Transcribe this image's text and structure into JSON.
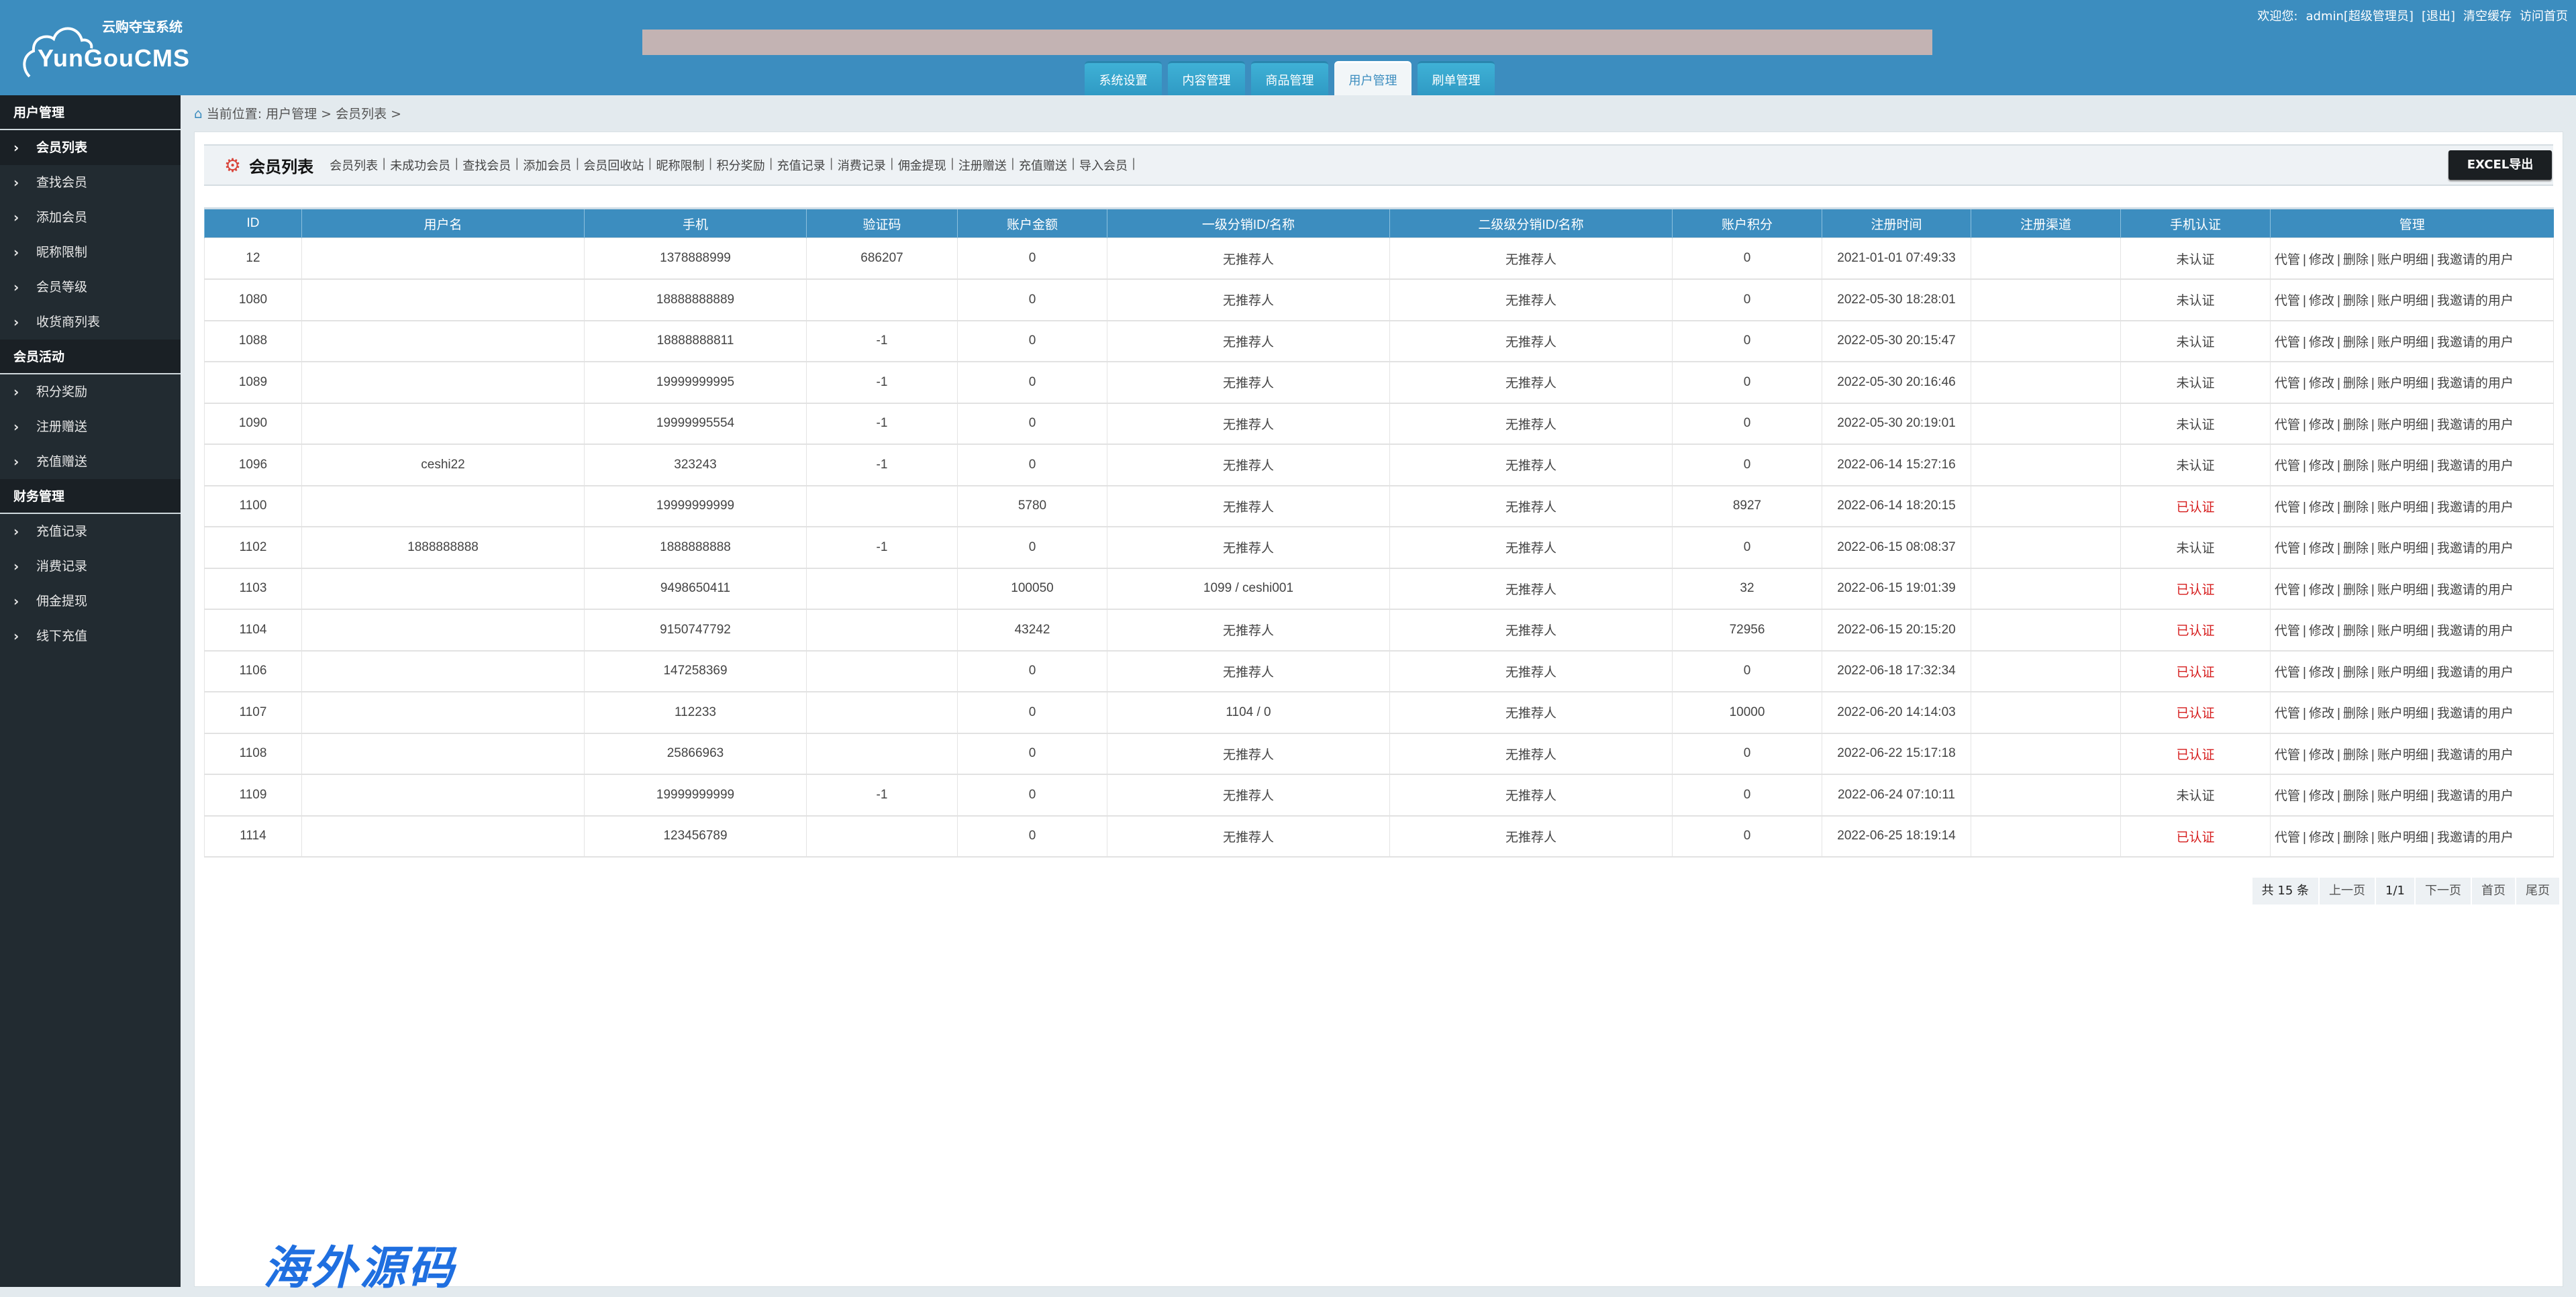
{
  "logo": {
    "cn": "云购夺宝系统",
    "en": "YunGouCMS"
  },
  "topnav": {
    "welcome": "欢迎您:",
    "user": "admin[超级管理员]",
    "logout": "[退出]",
    "clear_cache": "清空缓存",
    "visit_home": "访问首页"
  },
  "tabs": [
    {
      "label": "系统设置"
    },
    {
      "label": "内容管理"
    },
    {
      "label": "商品管理"
    },
    {
      "label": "用户管理",
      "active": true
    },
    {
      "label": "刷单管理"
    }
  ],
  "sidebar": {
    "sections": [
      {
        "title": "用户管理",
        "items": [
          "会员列表",
          "查找会员",
          "添加会员",
          "昵称限制",
          "会员等级",
          "收货商列表"
        ]
      },
      {
        "title": "会员活动",
        "items": [
          "积分奖励",
          "注册赠送",
          "充值赠送"
        ]
      },
      {
        "title": "财务管理",
        "items": [
          "充值记录",
          "消费记录",
          "佣金提现",
          "线下充值"
        ]
      }
    ],
    "active": "会员列表"
  },
  "breadcrumb": "当前位置: 用户管理 > 会员列表 >",
  "toolbar": {
    "title": "会员列表",
    "links": [
      "会员列表",
      "未成功会员",
      "查找会员",
      "添加会员",
      "会员回收站",
      "昵称限制",
      "积分奖励",
      "充值记录",
      "消费记录",
      "佣金提现",
      "注册赠送",
      "充值赠送",
      "导入会员"
    ],
    "excel": "EXCEL导出"
  },
  "table": {
    "columns": [
      "ID",
      "用户名",
      "手机",
      "验证码",
      "账户金额",
      "一级分销ID/名称",
      "二级级分销ID/名称",
      "账户积分",
      "注册时间",
      "注册渠道",
      "手机认证",
      "管理"
    ],
    "actions": [
      "代管",
      "修改",
      "删除",
      "账户明细",
      "我邀请的用户"
    ],
    "verified_color": "#d61c1c",
    "rows": [
      [
        "12",
        "",
        "1378888999",
        "686207",
        "0",
        "无推荐人",
        "无推荐人",
        "0",
        "2021-01-01 07:49:33",
        "",
        "未认证"
      ],
      [
        "1080",
        "",
        "18888888889",
        "",
        "0",
        "无推荐人",
        "无推荐人",
        "0",
        "2022-05-30 18:28:01",
        "",
        "未认证"
      ],
      [
        "1088",
        "",
        "18888888811",
        "-1",
        "0",
        "无推荐人",
        "无推荐人",
        "0",
        "2022-05-30 20:15:47",
        "",
        "未认证"
      ],
      [
        "1089",
        "",
        "19999999995",
        "-1",
        "0",
        "无推荐人",
        "无推荐人",
        "0",
        "2022-05-30 20:16:46",
        "",
        "未认证"
      ],
      [
        "1090",
        "",
        "19999995554",
        "-1",
        "0",
        "无推荐人",
        "无推荐人",
        "0",
        "2022-05-30 20:19:01",
        "",
        "未认证"
      ],
      [
        "1096",
        "ceshi22",
        "323243",
        "-1",
        "0",
        "无推荐人",
        "无推荐人",
        "0",
        "2022-06-14 15:27:16",
        "",
        "未认证"
      ],
      [
        "1100",
        "",
        "19999999999",
        "",
        "5780",
        "无推荐人",
        "无推荐人",
        "8927",
        "2022-06-14 18:20:15",
        "",
        "已认证"
      ],
      [
        "1102",
        "1888888888",
        "1888888888",
        "-1",
        "0",
        "无推荐人",
        "无推荐人",
        "0",
        "2022-06-15 08:08:37",
        "",
        "未认证"
      ],
      [
        "1103",
        "",
        "9498650411",
        "",
        "100050",
        "1099 / ceshi001",
        "无推荐人",
        "32",
        "2022-06-15 19:01:39",
        "",
        "已认证"
      ],
      [
        "1104",
        "",
        "9150747792",
        "",
        "43242",
        "无推荐人",
        "无推荐人",
        "72956",
        "2022-06-15 20:15:20",
        "",
        "已认证"
      ],
      [
        "1106",
        "",
        "147258369",
        "",
        "0",
        "无推荐人",
        "无推荐人",
        "0",
        "2022-06-18 17:32:34",
        "",
        "已认证"
      ],
      [
        "1107",
        "",
        "112233",
        "",
        "0",
        "1104 / 0",
        "无推荐人",
        "10000",
        "2022-06-20 14:14:03",
        "",
        "已认证"
      ],
      [
        "1108",
        "",
        "25866963",
        "",
        "0",
        "无推荐人",
        "无推荐人",
        "0",
        "2022-06-22 15:17:18",
        "",
        "已认证"
      ],
      [
        "1109",
        "",
        "19999999999",
        "-1",
        "0",
        "无推荐人",
        "无推荐人",
        "0",
        "2022-06-24 07:10:11",
        "",
        "未认证"
      ],
      [
        "1114",
        "",
        "123456789",
        "",
        "0",
        "无推荐人",
        "无推荐人",
        "0",
        "2022-06-25 18:19:14",
        "",
        "已认证"
      ]
    ]
  },
  "pager": {
    "total": "共 15 条",
    "prev": "上一页",
    "current": "1/1",
    "next": "下一页",
    "first": "首页",
    "last": "尾页"
  },
  "watermark": "海外源码"
}
